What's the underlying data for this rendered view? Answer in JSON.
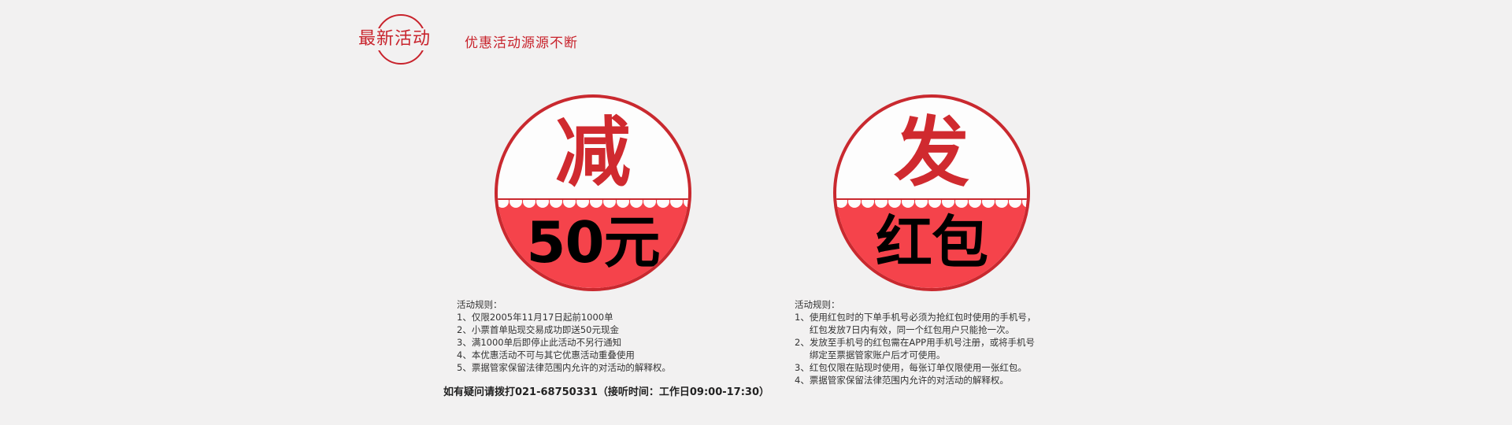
{
  "header": {
    "logo_text": "最新活动",
    "tagline": "优惠活动源源不断"
  },
  "badges": [
    {
      "top": "减",
      "bottom": "50元"
    },
    {
      "top": "发",
      "bottom": "红包"
    }
  ],
  "rules_left": {
    "title": "活动规则：",
    "items": [
      {
        "num": "1、",
        "text": "仅限2005年11月17日起前1000单"
      },
      {
        "num": "2、",
        "text": "小票首单贴现交易成功即送50元现金"
      },
      {
        "num": "3、",
        "text": "满1000单后即停止此活动不另行通知"
      },
      {
        "num": "4、",
        "text": "本优惠活动不可与其它优惠活动重叠使用"
      },
      {
        "num": "5、",
        "text": "票据管家保留法律范围内允许的对活动的解释权。"
      }
    ]
  },
  "rules_right": {
    "title": "活动规则：",
    "items": [
      {
        "num": "1、",
        "text": "使用红包时的下单手机号必须为抢红包时使用的手机号，\n红包发放7日内有效，同一个红包用户只能抢一次。"
      },
      {
        "num": "2、",
        "text": "发放至手机号的红包需在APP用手机号注册，或将手机号\n绑定至票据管家账户后才可使用。"
      },
      {
        "num": "3、",
        "text": "红包仅限在贴现时使用，每张订单仅限使用一张红包。"
      },
      {
        "num": "4、",
        "text": "票据管家保留法律范围内允许的对活动的解释权。"
      }
    ]
  },
  "footer": {
    "contact": "如有疑问请拨打021-68750331（接听时间：工作日09:00-17:30）"
  },
  "colors": {
    "brand_red": "#c8232c",
    "badge_fill": "#f5434b",
    "background": "#f2f1f1"
  }
}
